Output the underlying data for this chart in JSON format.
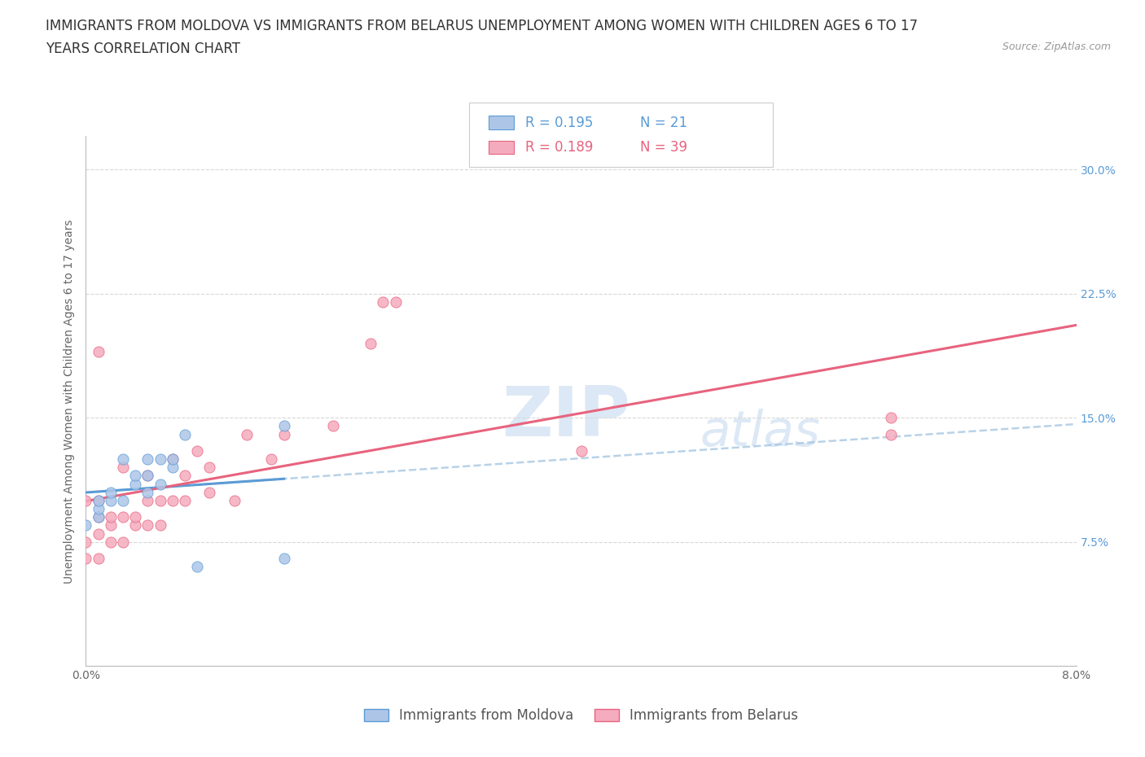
{
  "title_line1": "IMMIGRANTS FROM MOLDOVA VS IMMIGRANTS FROM BELARUS UNEMPLOYMENT AMONG WOMEN WITH CHILDREN AGES 6 TO 17",
  "title_line2": "YEARS CORRELATION CHART",
  "source_text": "Source: ZipAtlas.com",
  "ylabel": "Unemployment Among Women with Children Ages 6 to 17 years",
  "xlim": [
    0.0,
    0.08
  ],
  "ylim": [
    0.0,
    0.32
  ],
  "yticks_right": [
    0.0,
    0.075,
    0.15,
    0.225,
    0.3
  ],
  "ytick_labels_right": [
    "",
    "7.5%",
    "15.0%",
    "22.5%",
    "30.0%"
  ],
  "moldova_color": "#adc6e8",
  "belarus_color": "#f5abbe",
  "moldova_edge_color": "#5b9bd5",
  "belarus_edge_color": "#e8637e",
  "moldova_trend_color": "#5b9bd5",
  "belarus_trend_color": "#e8637e",
  "moldova_dashed_color": "#9bbfdd",
  "background_color": "#ffffff",
  "grid_color": "#d8d8d8",
  "moldova_x": [
    0.0,
    0.001,
    0.001,
    0.001,
    0.002,
    0.002,
    0.003,
    0.003,
    0.004,
    0.004,
    0.005,
    0.005,
    0.005,
    0.006,
    0.006,
    0.007,
    0.007,
    0.008,
    0.009,
    0.016,
    0.016
  ],
  "moldova_y": [
    0.085,
    0.09,
    0.095,
    0.1,
    0.1,
    0.105,
    0.1,
    0.125,
    0.11,
    0.115,
    0.105,
    0.115,
    0.125,
    0.11,
    0.125,
    0.12,
    0.125,
    0.14,
    0.06,
    0.145,
    0.065
  ],
  "belarus_x": [
    0.0,
    0.0,
    0.0,
    0.001,
    0.001,
    0.001,
    0.001,
    0.002,
    0.002,
    0.002,
    0.003,
    0.003,
    0.003,
    0.004,
    0.004,
    0.005,
    0.005,
    0.005,
    0.006,
    0.006,
    0.007,
    0.007,
    0.008,
    0.008,
    0.009,
    0.01,
    0.01,
    0.012,
    0.013,
    0.015,
    0.016,
    0.02,
    0.023,
    0.024,
    0.025,
    0.04,
    0.065,
    0.065,
    0.001
  ],
  "belarus_y": [
    0.065,
    0.075,
    0.1,
    0.065,
    0.08,
    0.09,
    0.1,
    0.075,
    0.085,
    0.09,
    0.075,
    0.09,
    0.12,
    0.085,
    0.09,
    0.085,
    0.1,
    0.115,
    0.085,
    0.1,
    0.1,
    0.125,
    0.1,
    0.115,
    0.13,
    0.105,
    0.12,
    0.1,
    0.14,
    0.125,
    0.14,
    0.145,
    0.195,
    0.22,
    0.22,
    0.13,
    0.15,
    0.14,
    0.19
  ],
  "title_fontsize": 12,
  "axis_fontsize": 10,
  "tick_fontsize": 10,
  "legend_fontsize": 12,
  "source_fontsize": 9
}
